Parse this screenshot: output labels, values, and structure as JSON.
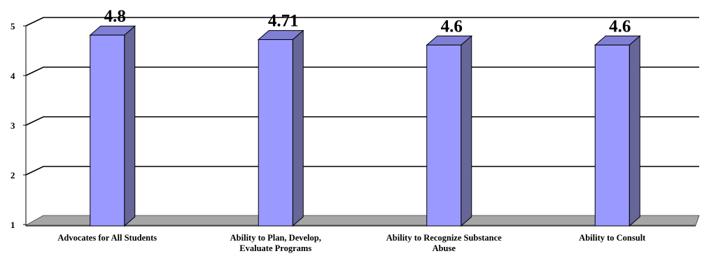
{
  "chart_data": {
    "type": "bar",
    "title": "",
    "xlabel": "",
    "ylabel": "",
    "categories": [
      [
        "Advocates for All Students"
      ],
      [
        "Ability to Plan, Develop,",
        "Evaluate Programs"
      ],
      [
        "Ability to Recognize Substance",
        "Abuse"
      ],
      [
        "Ability to Consult"
      ]
    ],
    "values": [
      4.8,
      4.71,
      4.6,
      4.6
    ],
    "data_labels": [
      "4.8",
      "4.71",
      "4.6",
      "4.6"
    ],
    "y_ticks": [
      "1",
      "2",
      "3",
      "4",
      "5"
    ],
    "ylim": [
      1,
      5
    ],
    "grid": true,
    "legend": "none",
    "style": "3d-column",
    "colors": {
      "bar_front": "#9999ff",
      "bar_side": "#666699",
      "bar_top": "#7f7fd6",
      "floor": "#a6a6a6",
      "gridline": "#000000"
    }
  }
}
